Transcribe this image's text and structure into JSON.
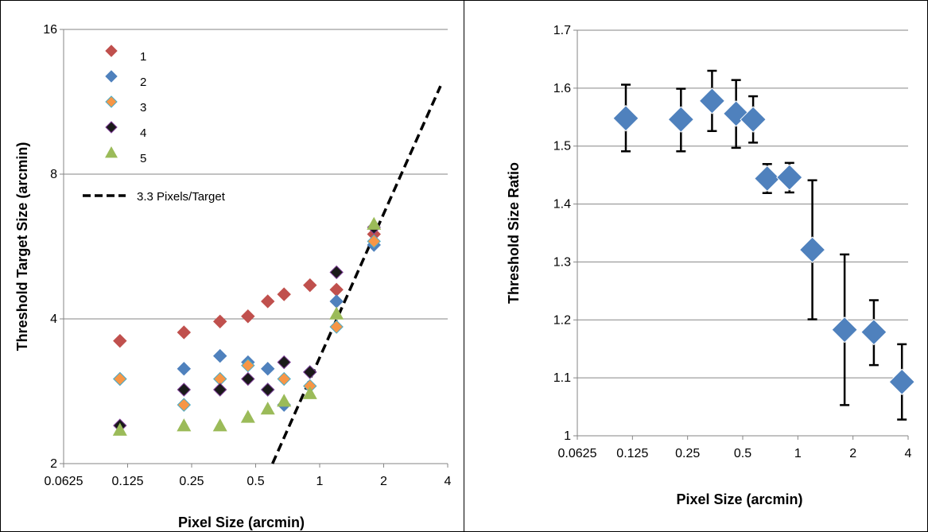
{
  "chart_data": [
    {
      "type": "scatter",
      "x_scale": "log2",
      "y_scale": "log2",
      "xlim": [
        0.0625,
        4
      ],
      "ylim": [
        2,
        16
      ],
      "x_ticks": [
        "0.0625",
        "0.125",
        "0.25",
        "0.5",
        "1",
        "2",
        "4"
      ],
      "y_ticks": [
        "2",
        "4",
        "8",
        "16"
      ],
      "xlabel": "Pixel Size (arcmin)",
      "ylabel": "Threshold Target Size (arcmin)",
      "grid": "horizontal",
      "legend": "top-left",
      "series": [
        {
          "name": "1",
          "marker": "diamond",
          "color": "#C0504D",
          "x": [
            0.115,
            0.23,
            0.34,
            0.46,
            0.57,
            0.68,
            0.9,
            1.2,
            1.8
          ],
          "y": [
            3.6,
            3.75,
            3.95,
            4.05,
            4.35,
            4.5,
            4.7,
            4.6,
            6.0
          ]
        },
        {
          "name": "2",
          "marker": "diamond",
          "color": "#4F81BD",
          "x": [
            0.115,
            0.23,
            0.34,
            0.46,
            0.57,
            0.68,
            0.9,
            1.2,
            1.8
          ],
          "y": [
            3.0,
            3.15,
            3.35,
            3.25,
            3.15,
            2.65,
            3.1,
            4.35,
            5.7
          ]
        },
        {
          "name": "3",
          "marker": "diamond",
          "color": "#F79646",
          "x": [
            0.115,
            0.23,
            0.34,
            0.46,
            0.57,
            0.68,
            0.9,
            1.2,
            1.8
          ],
          "y": [
            3.0,
            2.65,
            3.0,
            3.2,
            2.85,
            3.0,
            2.9,
            3.85,
            5.8
          ]
        },
        {
          "name": "4",
          "marker": "diamond",
          "color": "#1A1A1A",
          "x": [
            0.115,
            0.23,
            0.34,
            0.46,
            0.57,
            0.68,
            0.9,
            1.2,
            1.8
          ],
          "y": [
            2.4,
            2.85,
            2.85,
            3.0,
            2.85,
            3.25,
            3.1,
            5.0,
            6.2
          ]
        },
        {
          "name": "5",
          "marker": "triangle",
          "color": "#9BBB59",
          "x": [
            0.115,
            0.23,
            0.34,
            0.46,
            0.57,
            0.68,
            0.9,
            1.2,
            1.8
          ],
          "y": [
            2.35,
            2.4,
            2.4,
            2.5,
            2.6,
            2.7,
            2.8,
            4.1,
            6.3
          ]
        },
        {
          "name": "3.3 Pixels/Target",
          "type": "line",
          "style": "dashed",
          "color": "#000000",
          "x": [
            0.6,
            3.7
          ],
          "y": [
            2.0,
            12.2
          ]
        }
      ]
    },
    {
      "type": "scatter",
      "x_scale": "log2",
      "xlim": [
        0.0625,
        4
      ],
      "ylim": [
        1,
        1.7
      ],
      "x_ticks": [
        "0.0625",
        "0.125",
        "0.25",
        "0.5",
        "1",
        "2",
        "4"
      ],
      "y_ticks": [
        "1",
        "1.1",
        "1.2",
        "1.3",
        "1.4",
        "1.5",
        "1.6",
        "1.7"
      ],
      "xlabel": "Pixel Size (arcmin)",
      "ylabel": "Threshold Size Ratio",
      "grid": "horizontal",
      "legend": "none",
      "series": [
        {
          "marker": "diamond",
          "color": "#4F81BD",
          "x": [
            0.115,
            0.23,
            0.34,
            0.46,
            0.57,
            0.68,
            0.9,
            1.2,
            1.8,
            2.6,
            3.7
          ],
          "y": [
            1.548,
            1.546,
            1.578,
            1.556,
            1.546,
            1.444,
            1.446,
            1.321,
            1.183,
            1.179,
            1.093
          ],
          "err_low": [
            0.057,
            0.055,
            0.052,
            0.059,
            0.04,
            0.025,
            0.026,
            0.12,
            0.13,
            0.057,
            0.065
          ],
          "err_high": [
            0.058,
            0.053,
            0.052,
            0.058,
            0.04,
            0.025,
            0.025,
            0.12,
            0.13,
            0.055,
            0.065
          ]
        }
      ]
    }
  ]
}
